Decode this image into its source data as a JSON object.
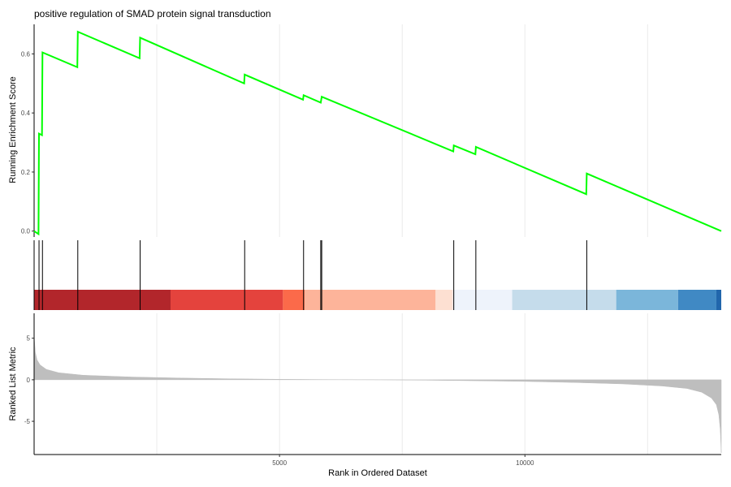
{
  "chart_data": {
    "type": "line",
    "title": "positive regulation of SMAD protein signal transduction",
    "xlabel": "Rank in Ordered Dataset",
    "x_range": [
      0,
      14000
    ],
    "x_ticks": [
      5000,
      10000
    ],
    "panels": {
      "enrichment": {
        "ylabel": "Running Enrichment Score",
        "ylim": [
          -0.02,
          0.7
        ],
        "y_ticks": [
          {
            "value": 0.0,
            "label": "0.0"
          },
          {
            "value": 0.2,
            "label": "0.2"
          },
          {
            "value": 0.4,
            "label": "0.4"
          },
          {
            "value": 0.6,
            "label": "0.6"
          }
        ],
        "line_color": "#00ff00",
        "points": [
          {
            "x": 0,
            "y": 0.0
          },
          {
            "x": 90,
            "y": -0.01
          },
          {
            "x": 100,
            "y": 0.33
          },
          {
            "x": 160,
            "y": 0.325
          },
          {
            "x": 170,
            "y": 0.605
          },
          {
            "x": 880,
            "y": 0.555
          },
          {
            "x": 890,
            "y": 0.675
          },
          {
            "x": 2150,
            "y": 0.585
          },
          {
            "x": 2160,
            "y": 0.655
          },
          {
            "x": 4280,
            "y": 0.5
          },
          {
            "x": 4290,
            "y": 0.53
          },
          {
            "x": 5480,
            "y": 0.445
          },
          {
            "x": 5490,
            "y": 0.46
          },
          {
            "x": 5840,
            "y": 0.435
          },
          {
            "x": 5860,
            "y": 0.455
          },
          {
            "x": 8540,
            "y": 0.27
          },
          {
            "x": 8550,
            "y": 0.29
          },
          {
            "x": 8990,
            "y": 0.26
          },
          {
            "x": 9000,
            "y": 0.285
          },
          {
            "x": 11250,
            "y": 0.125
          },
          {
            "x": 11260,
            "y": 0.195
          },
          {
            "x": 14000,
            "y": 0.0
          }
        ]
      },
      "hits": {
        "positions": [
          100,
          170,
          890,
          2160,
          4290,
          5490,
          5840,
          5860,
          8550,
          9000,
          11260
        ]
      },
      "color_bar": {
        "segments": [
          {
            "start": 0,
            "end": 2780,
            "color": "#b2262b"
          },
          {
            "start": 2780,
            "end": 5070,
            "color": "#e4433d"
          },
          {
            "start": 5070,
            "end": 5510,
            "color": "#fb6a4a"
          },
          {
            "start": 5510,
            "end": 8180,
            "color": "#fdb49a"
          },
          {
            "start": 8180,
            "end": 8530,
            "color": "#fde0d2"
          },
          {
            "start": 8530,
            "end": 9740,
            "color": "#eef3fb"
          },
          {
            "start": 9740,
            "end": 11860,
            "color": "#c5dceb"
          },
          {
            "start": 11860,
            "end": 13120,
            "color": "#7bb6da"
          },
          {
            "start": 13120,
            "end": 13900,
            "color": "#4089c4"
          },
          {
            "start": 13900,
            "end": 14000,
            "color": "#2166ac"
          }
        ]
      },
      "ranked": {
        "ylabel": "Ranked List Metric",
        "ylim": [
          -9,
          8
        ],
        "y_ticks": [
          {
            "value": 5,
            "label": "5"
          },
          {
            "value": 0,
            "label": "0"
          },
          {
            "value": -5,
            "label": "-5"
          }
        ],
        "fill_color": "#bebebe",
        "curve": [
          {
            "x": 0,
            "y": 5.3
          },
          {
            "x": 25,
            "y": 3.3
          },
          {
            "x": 60,
            "y": 2.4
          },
          {
            "x": 120,
            "y": 1.8
          },
          {
            "x": 250,
            "y": 1.25
          },
          {
            "x": 500,
            "y": 0.85
          },
          {
            "x": 1000,
            "y": 0.55
          },
          {
            "x": 2000,
            "y": 0.33
          },
          {
            "x": 3000,
            "y": 0.2
          },
          {
            "x": 4000,
            "y": 0.12
          },
          {
            "x": 5000,
            "y": 0.06
          },
          {
            "x": 6000,
            "y": 0.02
          },
          {
            "x": 7000,
            "y": 0.0
          },
          {
            "x": 8000,
            "y": -0.05
          },
          {
            "x": 9000,
            "y": -0.12
          },
          {
            "x": 10000,
            "y": -0.2
          },
          {
            "x": 11000,
            "y": -0.32
          },
          {
            "x": 12000,
            "y": -0.5
          },
          {
            "x": 12800,
            "y": -0.75
          },
          {
            "x": 13300,
            "y": -1.05
          },
          {
            "x": 13600,
            "y": -1.5
          },
          {
            "x": 13800,
            "y": -2.2
          },
          {
            "x": 13900,
            "y": -3.0
          },
          {
            "x": 13950,
            "y": -4.2
          },
          {
            "x": 13980,
            "y": -6.0
          },
          {
            "x": 14000,
            "y": -8.8
          }
        ]
      }
    }
  }
}
